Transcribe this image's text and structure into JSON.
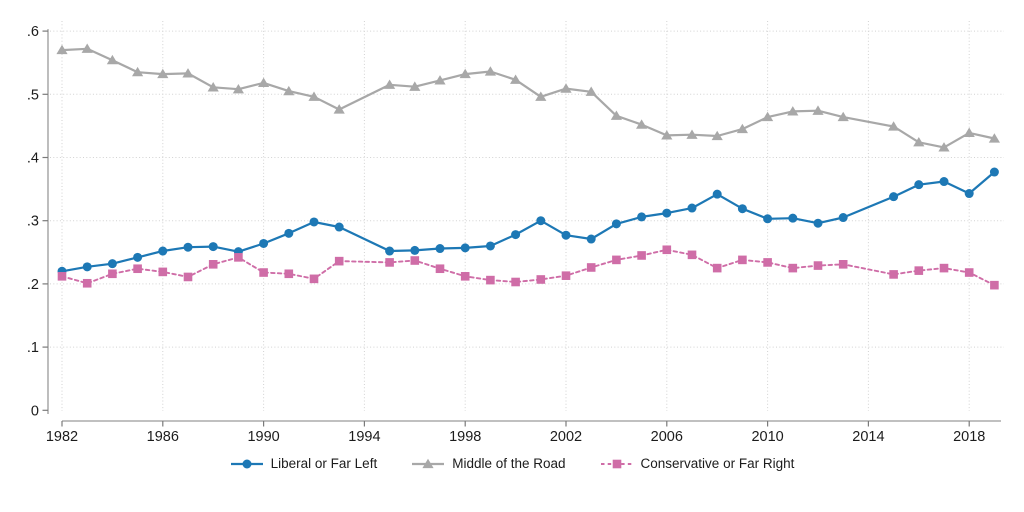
{
  "figure": {
    "background": "#ffffff",
    "text_color": "#1c1c1c",
    "grid_color": "#d2d2d2",
    "axis_color": "#9a9a9a"
  },
  "chart_data": {
    "type": "line",
    "title": "",
    "xlabel": "",
    "ylabel": "",
    "grid": true,
    "legend_position": "bottom",
    "xlim": [
      1981.5,
      2019.5
    ],
    "ylim": [
      0,
      0.6
    ],
    "x_tick_values": [
      1982,
      1986,
      1990,
      1994,
      1998,
      2002,
      2006,
      2010,
      2014,
      2018
    ],
    "x_tick_labels": [
      "1982",
      "1986",
      "1990",
      "1994",
      "1998",
      "2002",
      "2006",
      "2010",
      "2014",
      "2018"
    ],
    "y_tick_values": [
      0,
      0.1,
      0.2,
      0.3,
      0.4,
      0.5,
      0.6
    ],
    "y_tick_labels": [
      "0",
      ".1",
      ".2",
      ".3",
      ".4",
      ".5",
      ".6"
    ],
    "x": [
      1982,
      1983,
      1984,
      1985,
      1986,
      1987,
      1988,
      1989,
      1990,
      1991,
      1992,
      1993,
      1995,
      1996,
      1997,
      1998,
      1999,
      2000,
      2001,
      2002,
      2003,
      2004,
      2005,
      2006,
      2007,
      2008,
      2009,
      2010,
      2011,
      2012,
      2013,
      2015,
      2016,
      2017,
      2018,
      2019
    ],
    "note": "no data points for 1994 and 2014; lines connect adjacent surveyed years",
    "series": [
      {
        "name": "Liberal or Far Left",
        "color": "#1d78b5",
        "marker": "circle",
        "line_style": "solid",
        "values": [
          0.22,
          0.227,
          0.232,
          0.242,
          0.252,
          0.258,
          0.259,
          0.251,
          0.264,
          0.28,
          0.298,
          0.29,
          0.252,
          0.253,
          0.256,
          0.257,
          0.26,
          0.278,
          0.3,
          0.277,
          0.271,
          0.295,
          0.306,
          0.312,
          0.32,
          0.342,
          0.319,
          0.303,
          0.304,
          0.296,
          0.305,
          0.338,
          0.357,
          0.362,
          0.343,
          0.377
        ]
      },
      {
        "name": "Middle of the Road",
        "color": "#a8a8a8",
        "marker": "triangle",
        "line_style": "solid",
        "values": [
          0.57,
          0.572,
          0.554,
          0.535,
          0.532,
          0.533,
          0.511,
          0.508,
          0.518,
          0.505,
          0.496,
          0.476,
          0.515,
          0.512,
          0.522,
          0.532,
          0.536,
          0.523,
          0.496,
          0.509,
          0.504,
          0.466,
          0.452,
          0.435,
          0.436,
          0.434,
          0.445,
          0.464,
          0.473,
          0.474,
          0.464,
          0.449,
          0.424,
          0.416,
          0.439,
          0.43
        ]
      },
      {
        "name": "Conservative or Far Right",
        "color": "#cf6da7",
        "marker": "square",
        "line_style": "dashed",
        "values": [
          0.212,
          0.201,
          0.216,
          0.224,
          0.219,
          0.211,
          0.231,
          0.242,
          0.218,
          0.216,
          0.208,
          0.236,
          0.234,
          0.237,
          0.224,
          0.212,
          0.206,
          0.203,
          0.207,
          0.213,
          0.226,
          0.238,
          0.245,
          0.254,
          0.246,
          0.225,
          0.238,
          0.234,
          0.225,
          0.229,
          0.231,
          0.215,
          0.221,
          0.225,
          0.218,
          0.198
        ]
      }
    ]
  }
}
